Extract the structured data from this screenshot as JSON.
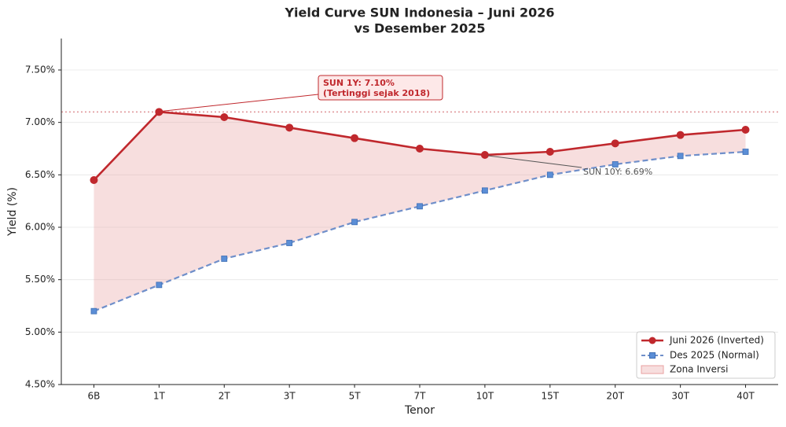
{
  "chart_data": {
    "type": "line",
    "title": [
      "Yield Curve SUN Indonesia – Juni 2026",
      "vs Desember 2025"
    ],
    "x_label": "Tenor",
    "y_label": "Yield (%)",
    "categories": [
      "6B",
      "1T",
      "2T",
      "3T",
      "5T",
      "7T",
      "10T",
      "15T",
      "20T",
      "30T",
      "40T"
    ],
    "series": [
      {
        "name": "Juni 2026 (Inverted)",
        "color": "#c0282d",
        "values": [
          6.45,
          7.1,
          7.05,
          6.95,
          6.85,
          6.75,
          6.69,
          6.72,
          6.8,
          6.88,
          6.93
        ]
      },
      {
        "name": "Des 2025 (Normal)",
        "color": "#5b8ed6",
        "values": [
          5.2,
          5.45,
          5.7,
          5.85,
          6.05,
          6.2,
          6.35,
          6.5,
          6.6,
          6.68,
          6.72
        ]
      }
    ],
    "fill_label": "Zona Inversi",
    "fill_color": "#e8a0a0",
    "reference_line": 7.1,
    "annotations": [
      {
        "lines": [
          "SUN 1Y: 7.10%",
          "(Tertinggi sejak 2018)"
        ]
      },
      {
        "lines": [
          "SUN 10Y: 6.69%"
        ]
      }
    ],
    "ylim": [
      4.5,
      7.8
    ],
    "yticks": [
      {
        "value": 4.5,
        "label": "4.50%"
      },
      {
        "value": 5.0,
        "label": "5.00%"
      },
      {
        "value": 5.5,
        "label": "5.50%"
      },
      {
        "value": 6.0,
        "label": "6.00%"
      },
      {
        "value": 6.5,
        "label": "6.50%"
      },
      {
        "value": 7.0,
        "label": "7.00%"
      },
      {
        "value": 7.5,
        "label": "7.50%"
      }
    ],
    "grid": true,
    "legend": "lower right"
  }
}
